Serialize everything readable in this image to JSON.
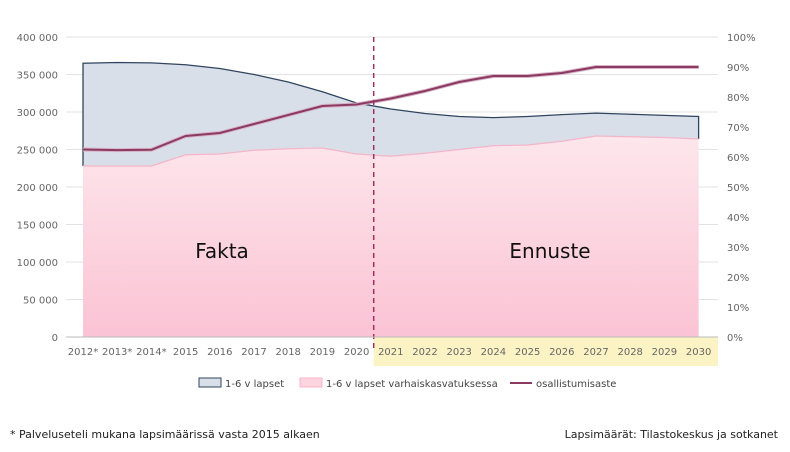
{
  "chart_data": {
    "type": "area",
    "categories": [
      "2012*",
      "2013*",
      "2014*",
      "2015",
      "2016",
      "2017",
      "2018",
      "2019",
      "2020",
      "2021",
      "2022",
      "2023",
      "2024",
      "2025",
      "2026",
      "2027",
      "2028",
      "2029",
      "2030"
    ],
    "series": [
      {
        "name": "1-6 v lapset",
        "axis": "left",
        "values": [
          365000,
          366000,
          365500,
          363000,
          358000,
          350000,
          340000,
          327000,
          312000,
          304000,
          298000,
          294000,
          292500,
          294000,
          296500,
          298500,
          297000,
          295500,
          294000
        ]
      },
      {
        "name": "1-6 v lapset varhaiskasvatuksessa",
        "axis": "left",
        "values": [
          228000,
          228000,
          228000,
          243000,
          244000,
          249000,
          251000,
          252000,
          244000,
          241000,
          245000,
          250000,
          255000,
          256000,
          261000,
          268000,
          267000,
          266000,
          264000
        ]
      },
      {
        "name": "osallistumisaste",
        "axis": "right",
        "values": [
          62.5,
          62.3,
          62.4,
          67.0,
          68.0,
          71.0,
          74.0,
          77.0,
          77.5,
          79.5,
          82.0,
          85.0,
          87.0,
          87.0,
          88.0,
          90.0,
          90.0,
          90.0,
          90.0
        ]
      }
    ],
    "left_axis": {
      "min": 0,
      "max": 400000,
      "ticks": [
        "0",
        "50 000",
        "100 000",
        "150 000",
        "200 000",
        "250 000",
        "300 000",
        "350 000",
        "400 000"
      ]
    },
    "right_axis": {
      "min": 0,
      "max": 100,
      "ticks": [
        "0%",
        "10%",
        "20%",
        "30%",
        "40%",
        "50%",
        "60%",
        "70%",
        "80%",
        "90%",
        "100%"
      ]
    },
    "grid": true,
    "legend_position": "bottom",
    "annotations": {
      "fact_label": "Fakta",
      "forecast_label": "Ennuste",
      "divider_after": "2020"
    },
    "colors": {
      "total": "#d9dfe9",
      "total_line": "#2f4560",
      "vaka": "#fdd4e0",
      "vaka_line": "#f5b5c8",
      "rate": "#8b3a62",
      "divider": "#a0305e",
      "forecast_band": "#fcf3c4",
      "grid": "#e3e3e3"
    }
  },
  "footnotes": {
    "left": "* Palveluseteli mukana lapsimäärissä vasta 2015 alkaen",
    "right": "Lapsimäärät: Tilastokeskus ja sotkanet"
  }
}
